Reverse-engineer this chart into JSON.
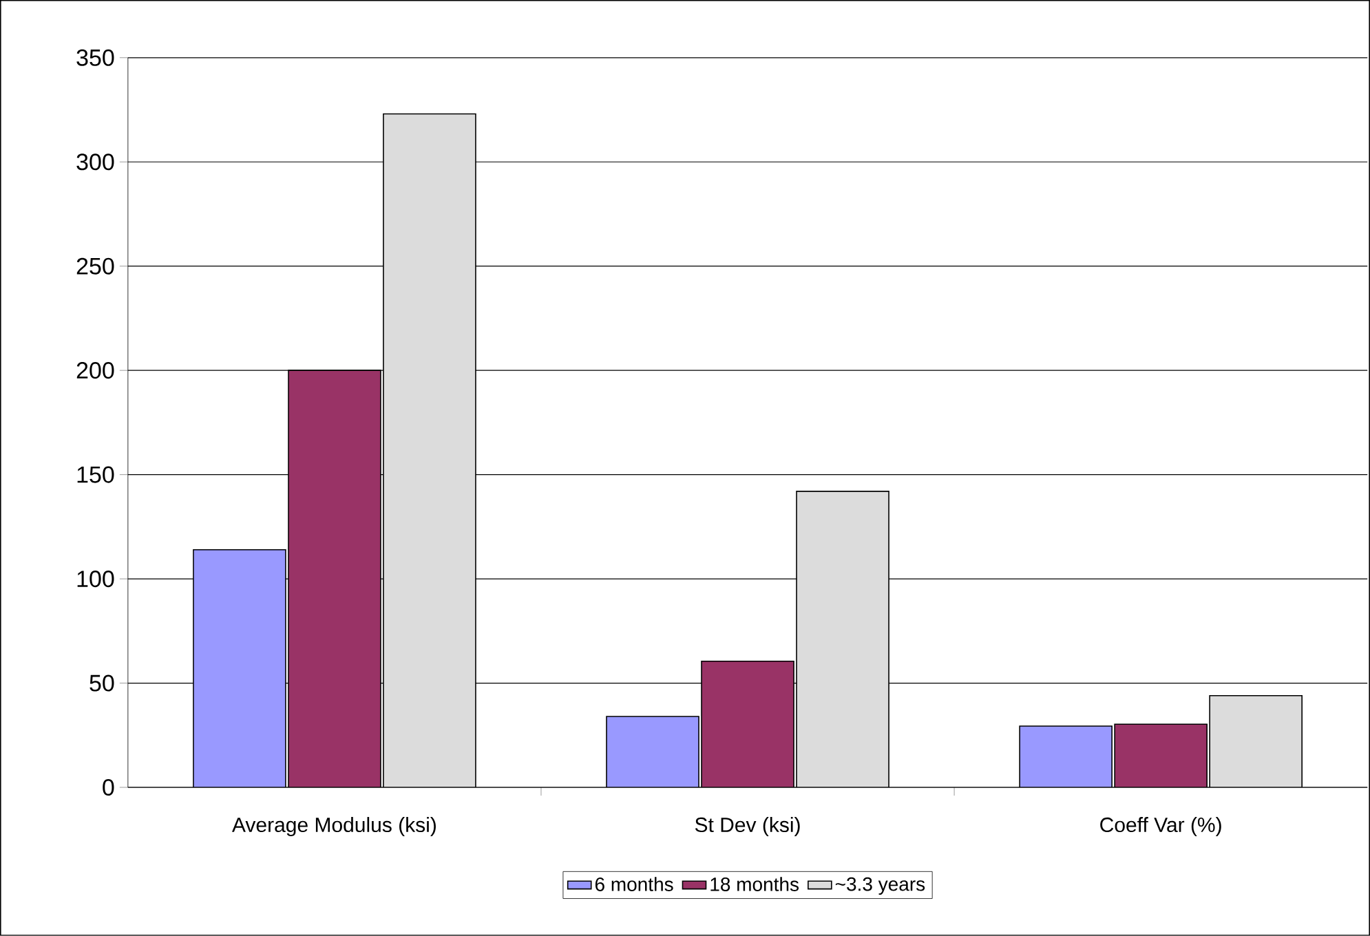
{
  "chart_data": {
    "type": "bar",
    "categories": [
      "Average Modulus (ksi)",
      "St Dev (ksi)",
      "Coeff Var (%)"
    ],
    "series": [
      {
        "name": "6 months",
        "color": "#9999ff",
        "values": [
          114,
          34,
          29.4
        ]
      },
      {
        "name": "18 months",
        "color": "#993366",
        "values": [
          200,
          60.5,
          30.3
        ]
      },
      {
        "name": "~3.3 years",
        "color": "#dcdcdc",
        "values": [
          323,
          142,
          44
        ]
      }
    ],
    "ylim": [
      0,
      350
    ],
    "yticks": [
      0,
      50,
      100,
      150,
      200,
      250,
      300,
      350
    ],
    "grid": "y",
    "legend": "bottom"
  }
}
